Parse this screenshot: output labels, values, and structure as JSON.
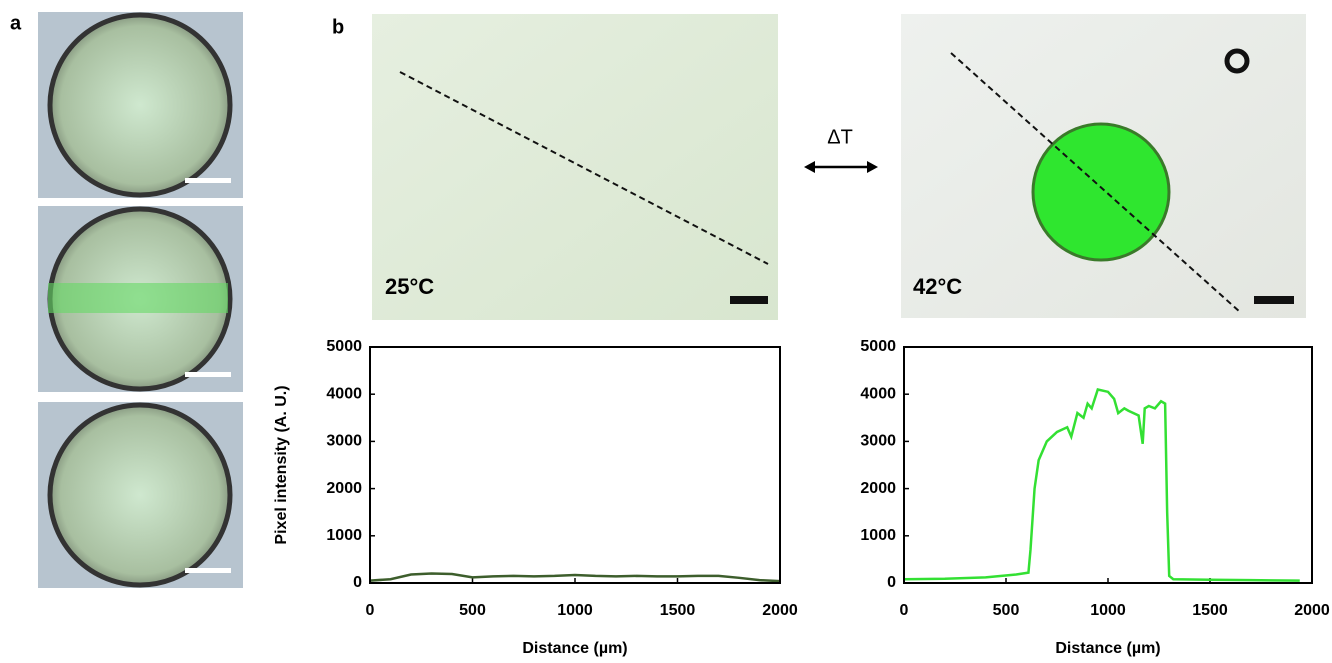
{
  "panels": {
    "a_label": "a",
    "b_label": "b",
    "left_temp": "25°C",
    "right_temp": "42°C",
    "delta": "ΔT"
  },
  "chart_data": [
    {
      "type": "line",
      "xlabel": "Distance (µm)",
      "ylabel": "Pixel intensity (A. U.)",
      "xlim": [
        0,
        2000
      ],
      "ylim": [
        0,
        5000
      ],
      "xticks": [
        0,
        500,
        1000,
        1500,
        2000
      ],
      "yticks": [
        0,
        1000,
        2000,
        3000,
        4000,
        5000
      ],
      "x": [
        0,
        100,
        200,
        300,
        400,
        500,
        600,
        700,
        800,
        900,
        1000,
        1100,
        1200,
        1300,
        1400,
        1500,
        1600,
        1700,
        1800,
        1900,
        2000
      ],
      "series": [
        {
          "color": "#3d5e2c",
          "values": [
            50,
            80,
            180,
            200,
            190,
            120,
            140,
            150,
            140,
            150,
            170,
            150,
            140,
            150,
            140,
            140,
            150,
            150,
            110,
            60,
            40
          ]
        }
      ]
    },
    {
      "type": "line",
      "xlabel": "Distance (µm)",
      "xlim": [
        0,
        2000
      ],
      "ylim": [
        0,
        5000
      ],
      "xticks": [
        0,
        500,
        1000,
        1500,
        2000
      ],
      "yticks": [
        0,
        1000,
        2000,
        3000,
        4000,
        5000
      ],
      "x": [
        0,
        200,
        400,
        550,
        610,
        620,
        640,
        660,
        700,
        750,
        800,
        820,
        850,
        880,
        900,
        920,
        950,
        1000,
        1030,
        1050,
        1080,
        1100,
        1150,
        1170,
        1180,
        1200,
        1230,
        1260,
        1280,
        1290,
        1300,
        1320,
        1500,
        1700,
        1940
      ],
      "series": [
        {
          "color": "#33e033",
          "values": [
            80,
            90,
            120,
            180,
            220,
            700,
            2000,
            2600,
            3000,
            3200,
            3300,
            3100,
            3600,
            3500,
            3800,
            3700,
            4100,
            4050,
            3900,
            3600,
            3700,
            3650,
            3550,
            2950,
            3700,
            3750,
            3700,
            3850,
            3800,
            1500,
            150,
            80,
            70,
            60,
            50
          ]
        }
      ]
    }
  ]
}
